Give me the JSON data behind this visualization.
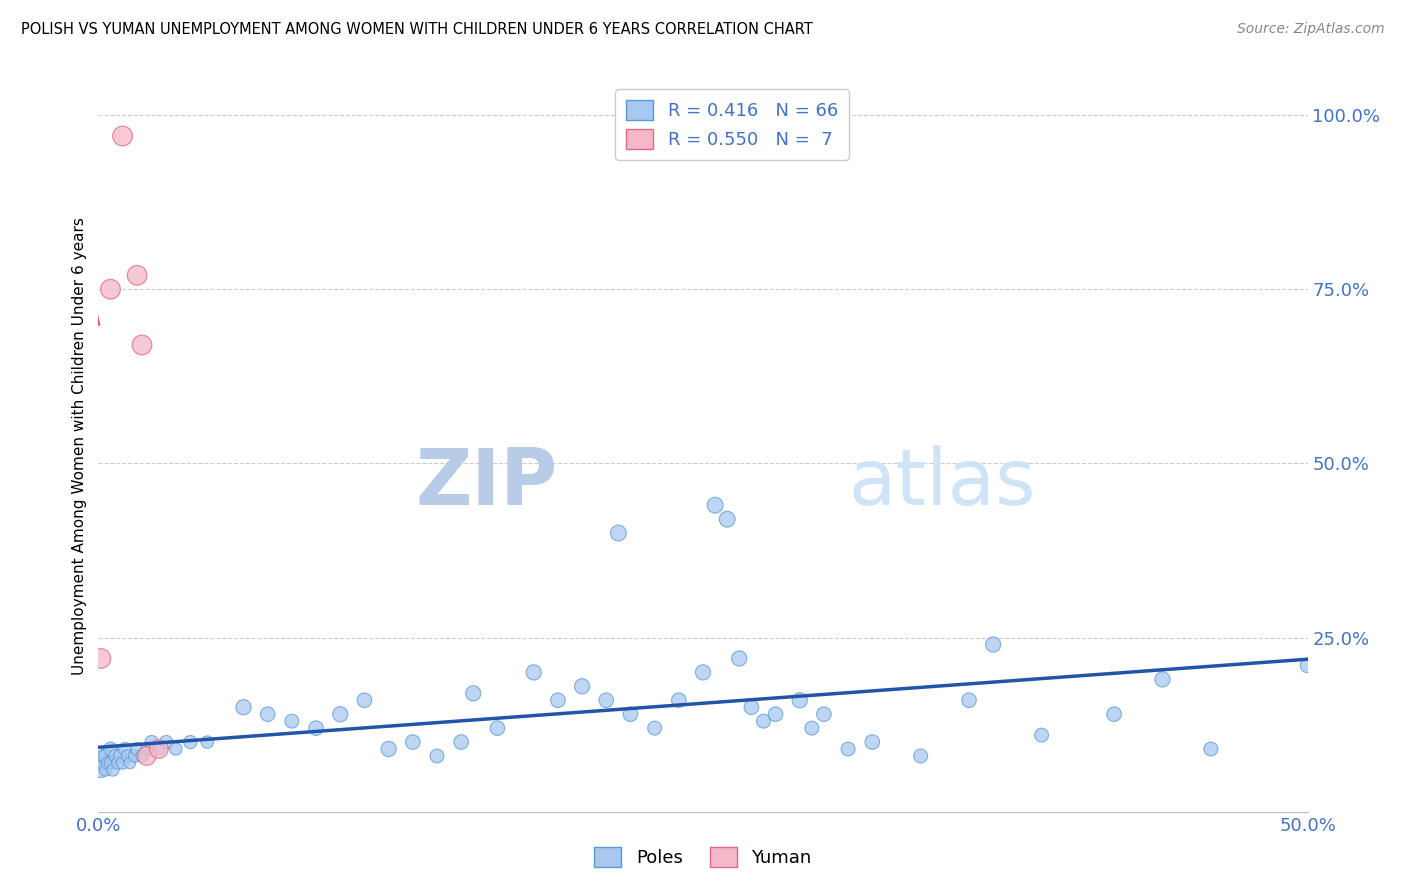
{
  "title": "POLISH VS YUMAN UNEMPLOYMENT AMONG WOMEN WITH CHILDREN UNDER 6 YEARS CORRELATION CHART",
  "source": "Source: ZipAtlas.com",
  "ylabel": "Unemployment Among Women with Children Under 6 years",
  "xlim": [
    0.0,
    0.5
  ],
  "ylim": [
    0.0,
    1.05
  ],
  "xticks": [
    0.0,
    0.1,
    0.2,
    0.3,
    0.4,
    0.5
  ],
  "xtick_labels": [
    "0.0%",
    "",
    "",
    "",
    "",
    "50.0%"
  ],
  "yticks_right": [
    0.0,
    0.25,
    0.5,
    0.75,
    1.0
  ],
  "ytick_labels_right": [
    "",
    "25.0%",
    "50.0%",
    "75.0%",
    "100.0%"
  ],
  "poles_R": 0.416,
  "poles_N": 66,
  "yuman_R": 0.55,
  "yuman_N": 7,
  "poles_color": "#A8C8F0",
  "poles_edge_color": "#5B9BD5",
  "yuman_color": "#F4B8C8",
  "yuman_edge_color": "#E06888",
  "trend_poles_color": "#2255A8",
  "trend_yuman_color": "#E8507A",
  "watermark_zip_color": "#B8CCE8",
  "watermark_atlas_color": "#D0E4F8",
  "background_color": "#FFFFFF",
  "grid_color": "#CCCCCC",
  "poles_x": [
    0.001,
    0.002,
    0.002,
    0.003,
    0.003,
    0.004,
    0.005,
    0.005,
    0.006,
    0.007,
    0.008,
    0.009,
    0.01,
    0.011,
    0.012,
    0.013,
    0.015,
    0.016,
    0.018,
    0.02,
    0.022,
    0.025,
    0.028,
    0.032,
    0.038,
    0.045,
    0.06,
    0.07,
    0.08,
    0.09,
    0.1,
    0.11,
    0.12,
    0.13,
    0.14,
    0.15,
    0.155,
    0.165,
    0.18,
    0.19,
    0.2,
    0.21,
    0.215,
    0.22,
    0.23,
    0.24,
    0.25,
    0.255,
    0.26,
    0.265,
    0.27,
    0.275,
    0.28,
    0.29,
    0.295,
    0.3,
    0.31,
    0.32,
    0.34,
    0.36,
    0.37,
    0.39,
    0.42,
    0.44,
    0.46,
    0.5
  ],
  "poles_y": [
    0.06,
    0.07,
    0.08,
    0.06,
    0.08,
    0.07,
    0.07,
    0.09,
    0.06,
    0.08,
    0.07,
    0.08,
    0.07,
    0.09,
    0.08,
    0.07,
    0.08,
    0.09,
    0.08,
    0.09,
    0.1,
    0.09,
    0.1,
    0.09,
    0.1,
    0.1,
    0.15,
    0.14,
    0.13,
    0.12,
    0.14,
    0.16,
    0.09,
    0.1,
    0.08,
    0.1,
    0.17,
    0.12,
    0.2,
    0.16,
    0.18,
    0.16,
    0.4,
    0.14,
    0.12,
    0.16,
    0.2,
    0.44,
    0.42,
    0.22,
    0.15,
    0.13,
    0.14,
    0.16,
    0.12,
    0.14,
    0.09,
    0.1,
    0.08,
    0.16,
    0.24,
    0.11,
    0.14,
    0.19,
    0.09,
    0.21
  ],
  "poles_size": [
    120,
    100,
    90,
    80,
    100,
    90,
    80,
    100,
    80,
    90,
    80,
    90,
    80,
    90,
    80,
    70,
    80,
    90,
    80,
    80,
    90,
    80,
    90,
    80,
    90,
    80,
    120,
    110,
    100,
    110,
    120,
    110,
    120,
    110,
    100,
    110,
    120,
    110,
    120,
    110,
    120,
    110,
    130,
    110,
    100,
    110,
    120,
    130,
    130,
    120,
    110,
    100,
    110,
    120,
    100,
    110,
    100,
    110,
    100,
    110,
    120,
    100,
    110,
    120,
    100,
    110
  ],
  "yuman_x": [
    0.001,
    0.005,
    0.01,
    0.016,
    0.018,
    0.02,
    0.025
  ],
  "yuman_y": [
    0.22,
    0.75,
    0.97,
    0.77,
    0.67,
    0.08,
    0.09
  ],
  "yuman_size": [
    200,
    200,
    200,
    200,
    200,
    180,
    180
  ],
  "yuman_trendline_x0": 0.0,
  "yuman_trendline_x1": 0.5,
  "poles_trendline_x0": 0.0,
  "poles_trendline_x1": 0.5
}
